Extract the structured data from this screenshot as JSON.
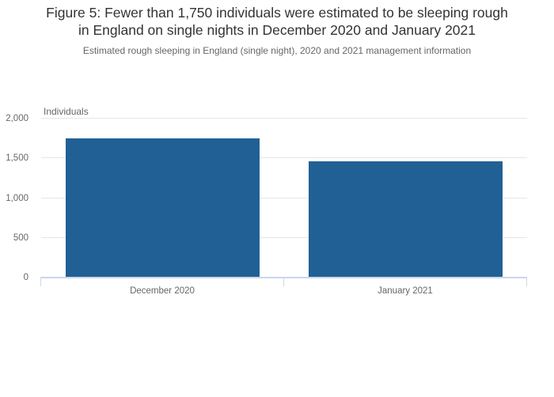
{
  "title_lines": [
    "Figure 5: Fewer than 1,750 individuals were estimated to be sleeping rough",
    "in England on single nights in December 2020 and January 2021"
  ],
  "chart_data": {
    "type": "bar",
    "title": "Figure 5: Fewer than 1,750 individuals were estimated to be sleeping rough in England on single nights in December 2020 and January 2021",
    "subtitle": "Estimated rough sleeping in England (single night), 2020 and 2021 management information",
    "categories": [
      "December 2020",
      "January 2021"
    ],
    "values": [
      1743,
      1461
    ],
    "xlabel": "",
    "ylabel": "Individuals",
    "ylim": [
      0,
      2000
    ],
    "yticks": [
      0,
      500,
      1000,
      1500,
      2000
    ],
    "ytick_labels": [
      "0",
      "500",
      "1,000",
      "1,500",
      "2,000"
    ],
    "grid": true,
    "legend": "none"
  },
  "colors": {
    "bar": "#206095",
    "gridline": "#e6e6e6",
    "axis_line": "#ccd6eb",
    "title_text": "#333333",
    "muted_text": "#666666"
  }
}
